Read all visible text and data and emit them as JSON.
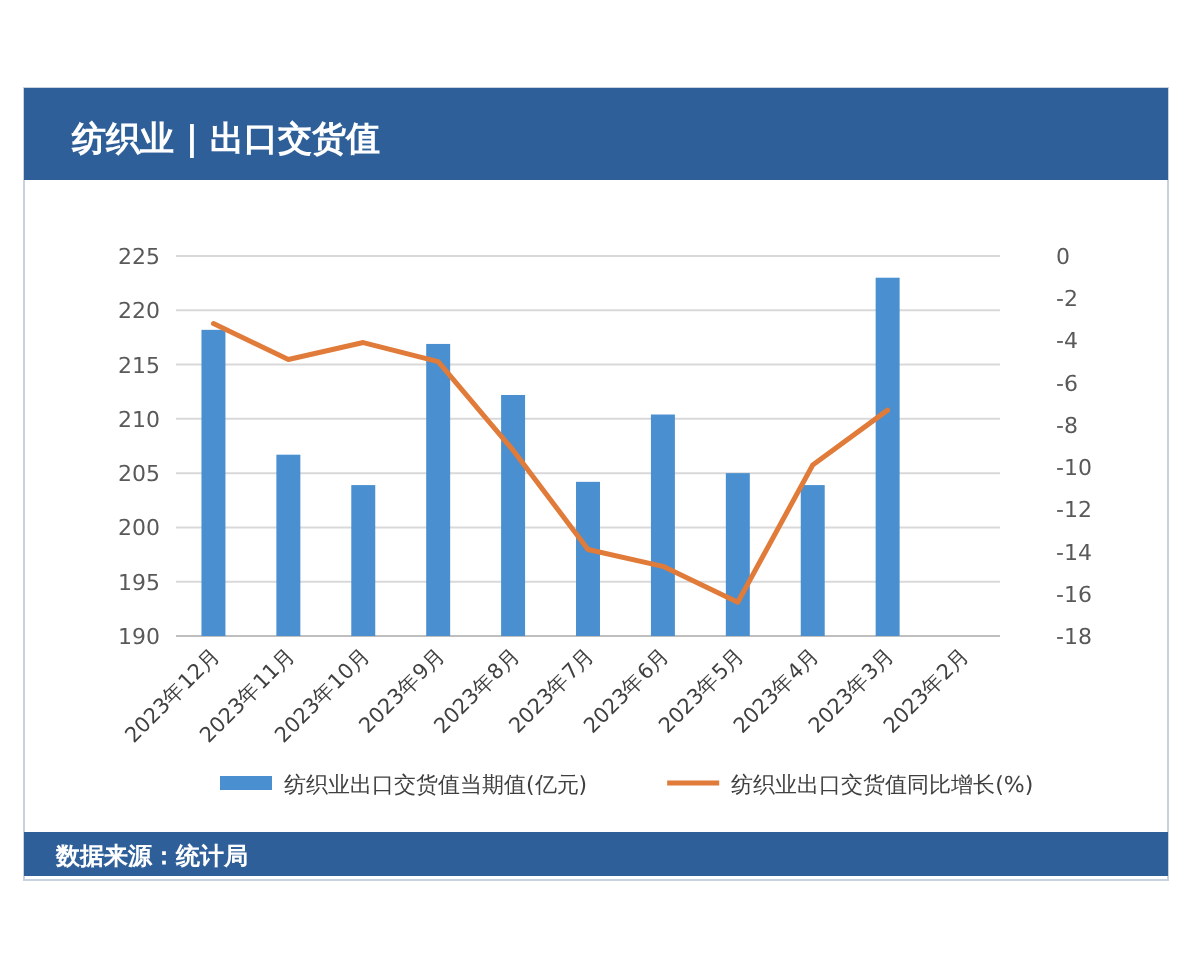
{
  "chart_data": {
    "type": "bar",
    "title": "纺织业 | 出口交货值",
    "categories": [
      "2023年12月",
      "2023年11月",
      "2023年10月",
      "2023年9月",
      "2023年8月",
      "2023年7月",
      "2023年6月",
      "2023年5月",
      "2023年4月",
      "2023年3月",
      "2023年2月"
    ],
    "series": [
      {
        "name": "纺织业出口交货值当期值(亿元)",
        "color": "#4a8fd0",
        "values": [
          218.2,
          206.7,
          203.9,
          216.9,
          212.2,
          204.2,
          210.4,
          205.0,
          203.9,
          223.0,
          null
        ]
      },
      {
        "name": "纺织业出口交货值同比增长(%)",
        "type": "line",
        "axis": "y2",
        "color": "#e07b39",
        "values": [
          -3.2,
          -4.9,
          -4.1,
          -5.0,
          -9.2,
          -13.9,
          -14.7,
          -16.4,
          -9.9,
          -7.3,
          null
        ]
      }
    ],
    "ylim": [
      190,
      225
    ],
    "yticks": [
      190,
      195,
      200,
      205,
      210,
      215,
      220,
      225
    ],
    "y2lim": [
      -18,
      0
    ],
    "y2ticks": [
      -18,
      -16,
      -14,
      -12,
      -10,
      -8,
      -6,
      -4,
      -2,
      0
    ],
    "grid": "y",
    "legend": "bottom",
    "annotations": [
      "数据来源：统计局"
    ]
  }
}
